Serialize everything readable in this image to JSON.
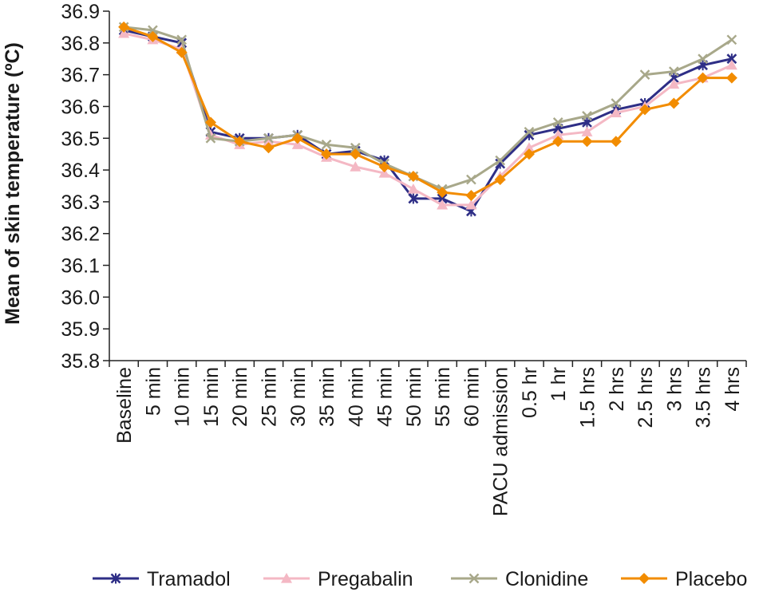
{
  "chart_data": {
    "type": "line",
    "title": "",
    "xlabel": "",
    "ylabel": "Mean of skin temperature (ºC)",
    "ylim": [
      35.8,
      36.9
    ],
    "yticks": [
      "35.8",
      "35.9",
      "36.0",
      "36.1",
      "36.2",
      "36.3",
      "36.4",
      "36.5",
      "36.6",
      "36.7",
      "36.8",
      "36.9"
    ],
    "grid": false,
    "legend_position": "bottom",
    "categories": [
      "Baseline",
      "5 min",
      "10 min",
      "15 min",
      "20 min",
      "25 min",
      "30 min",
      "35 min",
      "40 min",
      "45 min",
      "50 min",
      "55 min",
      "60 min",
      "PACU admission",
      "0.5 hr",
      "1 hr",
      "1.5 hrs",
      "2 hrs",
      "2.5 hrs",
      "3 hrs",
      "3.5 hrs",
      "4 hrs"
    ],
    "series": [
      {
        "name": "Tramadol",
        "color": "#2e2e86",
        "marker": "star",
        "values": [
          36.84,
          36.82,
          36.8,
          36.52,
          36.5,
          36.5,
          36.51,
          36.45,
          36.46,
          36.43,
          36.31,
          36.31,
          36.27,
          36.42,
          36.51,
          36.53,
          36.55,
          36.59,
          36.61,
          36.69,
          36.73,
          36.75
        ]
      },
      {
        "name": "Pregabalin",
        "color": "#f4b8c4",
        "marker": "triangle",
        "values": [
          36.83,
          36.81,
          36.78,
          36.51,
          36.48,
          36.49,
          36.48,
          36.44,
          36.41,
          36.39,
          36.34,
          36.29,
          36.29,
          36.38,
          36.47,
          36.51,
          36.52,
          36.58,
          36.6,
          36.67,
          36.69,
          36.73
        ]
      },
      {
        "name": "Clonidine",
        "color": "#a8a88a",
        "marker": "x",
        "values": [
          36.85,
          36.84,
          36.81,
          36.5,
          36.49,
          36.5,
          36.51,
          36.48,
          36.47,
          36.42,
          36.38,
          36.34,
          36.37,
          36.43,
          36.52,
          36.55,
          36.57,
          36.61,
          36.7,
          36.71,
          36.75,
          36.81
        ]
      },
      {
        "name": "Placebo",
        "color": "#f28c00",
        "marker": "diamond",
        "values": [
          36.85,
          36.82,
          36.77,
          36.55,
          36.49,
          36.47,
          36.5,
          36.45,
          36.45,
          36.41,
          36.38,
          36.33,
          36.32,
          36.37,
          36.45,
          36.49,
          36.49,
          36.49,
          36.59,
          36.61,
          36.69,
          36.69
        ]
      }
    ]
  }
}
